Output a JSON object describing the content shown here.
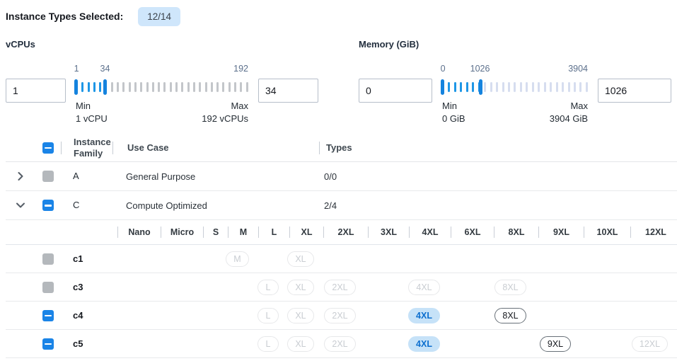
{
  "title": {
    "label": "Instance Types Selected:",
    "badge": "12/14"
  },
  "vcpus": {
    "label": "vCPUs",
    "from_value": "1",
    "to_value": "34",
    "slider": {
      "start_label": "1",
      "current_label": "34",
      "end_label": "192",
      "min_caption": "Min",
      "min_detail": "1 vCPU",
      "max_caption": "Max",
      "max_detail": "192 vCPUs",
      "range_start_pct": 0,
      "range_end_pct": 17,
      "tick_count": 30,
      "idle_tick_color": "#c3c6ca"
    }
  },
  "memory": {
    "label": "Memory (GiB)",
    "from_value": "0",
    "to_value": "1026",
    "slider": {
      "start_label": "0",
      "current_label": "1026",
      "end_label": "3904",
      "min_caption": "Min",
      "min_detail": "0 GiB",
      "max_caption": "Max",
      "max_detail": "3904 GiB",
      "range_start_pct": 0,
      "range_end_pct": 26,
      "tick_count": 25,
      "idle_tick_color": "#d6ddef"
    }
  },
  "table": {
    "headers": {
      "family": "Instance Family",
      "use_case": "Use Case",
      "types": "Types"
    },
    "header_checkbox": "indeterminate",
    "family_rows": [
      {
        "family": "A",
        "use_case": "General Purpose",
        "types": "0/0",
        "expanded": false,
        "checkbox": "disabled"
      },
      {
        "family": "C",
        "use_case": "Compute Optimized",
        "types": "2/4",
        "expanded": true,
        "checkbox": "indeterminate"
      }
    ],
    "sizes": [
      "Nano",
      "Micro",
      "S",
      "M",
      "L",
      "XL",
      "2XL",
      "3XL",
      "4XL",
      "6XL",
      "8XL",
      "9XL",
      "10XL",
      "12XL"
    ],
    "type_rows": [
      {
        "name": "c1",
        "checkbox": "disabled",
        "pills": [
          {
            "size": "M",
            "state": "disabled"
          },
          {
            "size": "XL",
            "state": "disabled"
          }
        ]
      },
      {
        "name": "c3",
        "checkbox": "disabled",
        "pills": [
          {
            "size": "L",
            "state": "disabled"
          },
          {
            "size": "XL",
            "state": "disabled"
          },
          {
            "size": "2XL",
            "state": "disabled"
          },
          {
            "size": "4XL",
            "state": "disabled"
          },
          {
            "size": "8XL",
            "state": "disabled"
          }
        ]
      },
      {
        "name": "c4",
        "checkbox": "indeterminate",
        "pills": [
          {
            "size": "L",
            "state": "disabled"
          },
          {
            "size": "XL",
            "state": "disabled"
          },
          {
            "size": "2XL",
            "state": "disabled"
          },
          {
            "size": "4XL",
            "state": "selected"
          },
          {
            "size": "8XL",
            "state": "enabled"
          }
        ]
      },
      {
        "name": "c5",
        "checkbox": "indeterminate",
        "pills": [
          {
            "size": "L",
            "state": "disabled"
          },
          {
            "size": "XL",
            "state": "disabled"
          },
          {
            "size": "2XL",
            "state": "disabled"
          },
          {
            "size": "4XL",
            "state": "selected"
          },
          {
            "size": "9XL",
            "state": "enabled"
          },
          {
            "size": "12XL",
            "state": "disabled"
          }
        ]
      }
    ]
  },
  "colors": {
    "accent_blue": "#1a84e7",
    "badge_bg": "#cfe6fb",
    "slider_handle": "#1583de",
    "slider_active_tick": "#1e96e6",
    "selected_pill_bg": "#c6e2f8",
    "selected_pill_text": "#0d6fcf",
    "disabled_gray": "#b4b8bc"
  }
}
